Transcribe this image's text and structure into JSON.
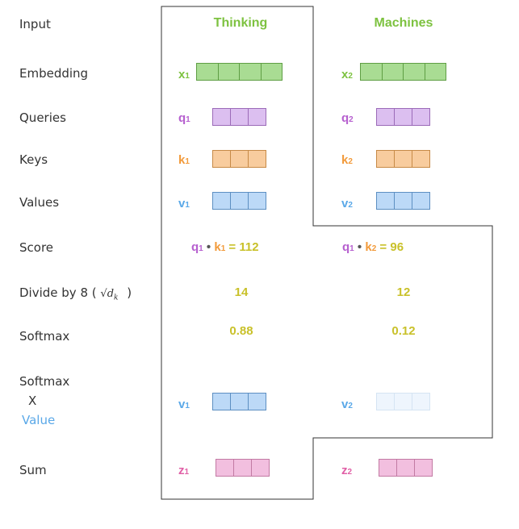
{
  "row_labels": {
    "input": "Input",
    "embedding": "Embedding",
    "queries": "Queries",
    "keys": "Keys",
    "values": "Values",
    "score": "Score",
    "divide_prefix": "Divide by 8 (",
    "divide_math": "√d",
    "divide_math_sub": "k",
    "divide_suffix": ")",
    "softmax": "Softmax",
    "softmax_x_value_line1": "Softmax",
    "softmax_x_value_line2": "X",
    "softmax_x_value_line3": "Value",
    "sum": "Sum"
  },
  "words": [
    "Thinking",
    "Machines"
  ],
  "colors": {
    "green": "#7dc240",
    "purple": "#b65fcf",
    "orange": "#f29a3a",
    "blue": "#5aa8e8",
    "pink": "#e05fa6",
    "yellow": "#c9c12a",
    "value_label": "#5aa8e8"
  },
  "col1": {
    "x": "x",
    "x_sub": "1",
    "q": "q",
    "q_sub": "1",
    "k": "k",
    "k_sub": "1",
    "v": "v",
    "v_sub": "1",
    "score_q": "q",
    "score_q_sub": "1",
    "score_dot": "•",
    "score_k": "k",
    "score_k_sub": "1",
    "score_eq": "= 112",
    "divided": "14",
    "softmax": "0.88",
    "wv": "v",
    "wv_sub": "1",
    "z": "z",
    "z_sub": "1"
  },
  "col2": {
    "x": "x",
    "x_sub": "2",
    "q": "q",
    "q_sub": "2",
    "k": "k",
    "k_sub": "2",
    "v": "v",
    "v_sub": "2",
    "score_q": "q",
    "score_q_sub": "1",
    "score_dot": "•",
    "score_k": "k",
    "score_k_sub": "2",
    "score_eq": "= 96",
    "divided": "12",
    "softmax": "0.12",
    "wv": "v",
    "wv_sub": "2",
    "z": "z",
    "z_sub": "2"
  }
}
